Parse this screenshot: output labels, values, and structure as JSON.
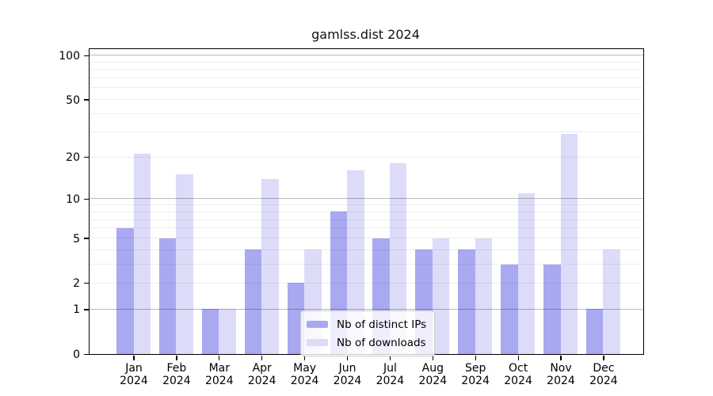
{
  "title": "gamlss.dist 2024",
  "colors": {
    "distinct_ips": "#a9a9f2",
    "downloads": "#dcdcf8",
    "grid_major": "rgba(0,0,0,0.27)",
    "grid_minor": "rgba(0,0,0,0.065)",
    "spine": "#000000",
    "text": "#000000",
    "legend_bg": "rgba(255,255,255,0.8)",
    "legend_border": "#cccccc"
  },
  "legend": {
    "items": [
      {
        "label": "Nb of distinct IPs",
        "color_key": "distinct_ips"
      },
      {
        "label": "Nb of downloads",
        "color_key": "downloads"
      }
    ]
  },
  "chart_data": {
    "type": "bar",
    "title": "gamlss.dist 2024",
    "categories": [
      "Jan 2024",
      "Feb 2024",
      "Mar 2024",
      "Apr 2024",
      "May 2024",
      "Jun 2024",
      "Jul 2024",
      "Aug 2024",
      "Sep 2024",
      "Oct 2024",
      "Nov 2024",
      "Dec 2024"
    ],
    "series": [
      {
        "name": "Nb of distinct IPs",
        "color_key": "distinct_ips",
        "values": [
          6,
          5,
          1,
          4,
          2,
          8,
          5,
          4,
          4,
          3,
          3,
          1
        ]
      },
      {
        "name": "Nb of downloads",
        "color_key": "downloads",
        "values": [
          21,
          15,
          1,
          14,
          4,
          16,
          18,
          5,
          5,
          11,
          29,
          4
        ]
      }
    ],
    "xlabel": "",
    "ylabel": "",
    "y_scale": "log10(value+1)",
    "ylim": [
      0,
      110
    ],
    "y_ticks": [
      0,
      1,
      2,
      5,
      10,
      20,
      50,
      100
    ],
    "grid_major_values": [
      1,
      10,
      100
    ],
    "grid_minor_values": [
      2,
      3,
      4,
      5,
      6,
      7,
      8,
      9,
      20,
      30,
      40,
      50,
      60,
      70,
      80,
      90
    ],
    "grid": true,
    "legend_position": "lower center"
  }
}
